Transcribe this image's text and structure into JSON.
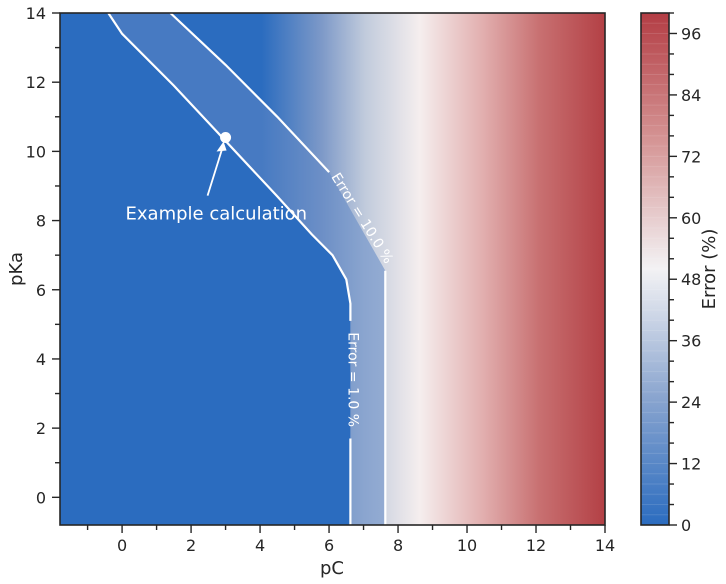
{
  "chart_data": {
    "type": "heatmap",
    "title": "",
    "xlabel": "pC",
    "ylabel": "pKa",
    "xlim": [
      -1.8,
      14
    ],
    "ylim": [
      -0.8,
      14
    ],
    "x_ticks": [
      0,
      2,
      4,
      6,
      8,
      10,
      12,
      14
    ],
    "y_ticks": [
      0,
      2,
      4,
      6,
      8,
      10,
      12,
      14
    ],
    "x_tick_labels": [
      "0",
      "2",
      "4",
      "6",
      "8",
      "10",
      "12",
      "14"
    ],
    "y_tick_labels": [
      "0",
      "2",
      "4",
      "6",
      "8",
      "10",
      "12",
      "14"
    ],
    "colorbar": {
      "label": "Error (%)",
      "range": [
        0,
        100
      ],
      "levels": 50,
      "ticks": [
        0,
        12,
        24,
        36,
        48,
        60,
        72,
        84,
        96
      ],
      "tick_labels": [
        "0",
        "12",
        "24",
        "36",
        "48",
        "60",
        "72",
        "84",
        "96"
      ],
      "colormap": [
        "#2b6cbf",
        "#ffffff",
        "#b33d44"
      ]
    },
    "contours": [
      {
        "label": "Error = 1.0 %",
        "level": 1.0,
        "points": [
          [
            6.62,
            -0.8
          ],
          [
            6.62,
            1.7
          ]
        ],
        "points_upper": [
          [
            6.62,
            5.1
          ],
          [
            6.62,
            5.6
          ],
          [
            6.5,
            6.3
          ],
          [
            6.1,
            7.0
          ],
          [
            5.5,
            7.6
          ],
          [
            4.5,
            8.7
          ],
          [
            3.0,
            10.3
          ],
          [
            1.5,
            11.9
          ],
          [
            0.0,
            13.4
          ],
          [
            -0.4,
            14
          ]
        ]
      },
      {
        "label": "Error = 10.0 %",
        "level": 10.0,
        "points": [
          [
            7.63,
            -0.8
          ],
          [
            7.63,
            6.55
          ]
        ],
        "points_upper": [
          [
            6.0,
            9.4
          ],
          [
            4.5,
            11.0
          ],
          [
            3.0,
            12.5
          ],
          [
            1.4,
            14
          ]
        ]
      }
    ],
    "annotation": {
      "text": "Example calculation",
      "point": [
        3.0,
        10.4
      ],
      "text_at": [
        0.1,
        8.2
      ]
    }
  }
}
